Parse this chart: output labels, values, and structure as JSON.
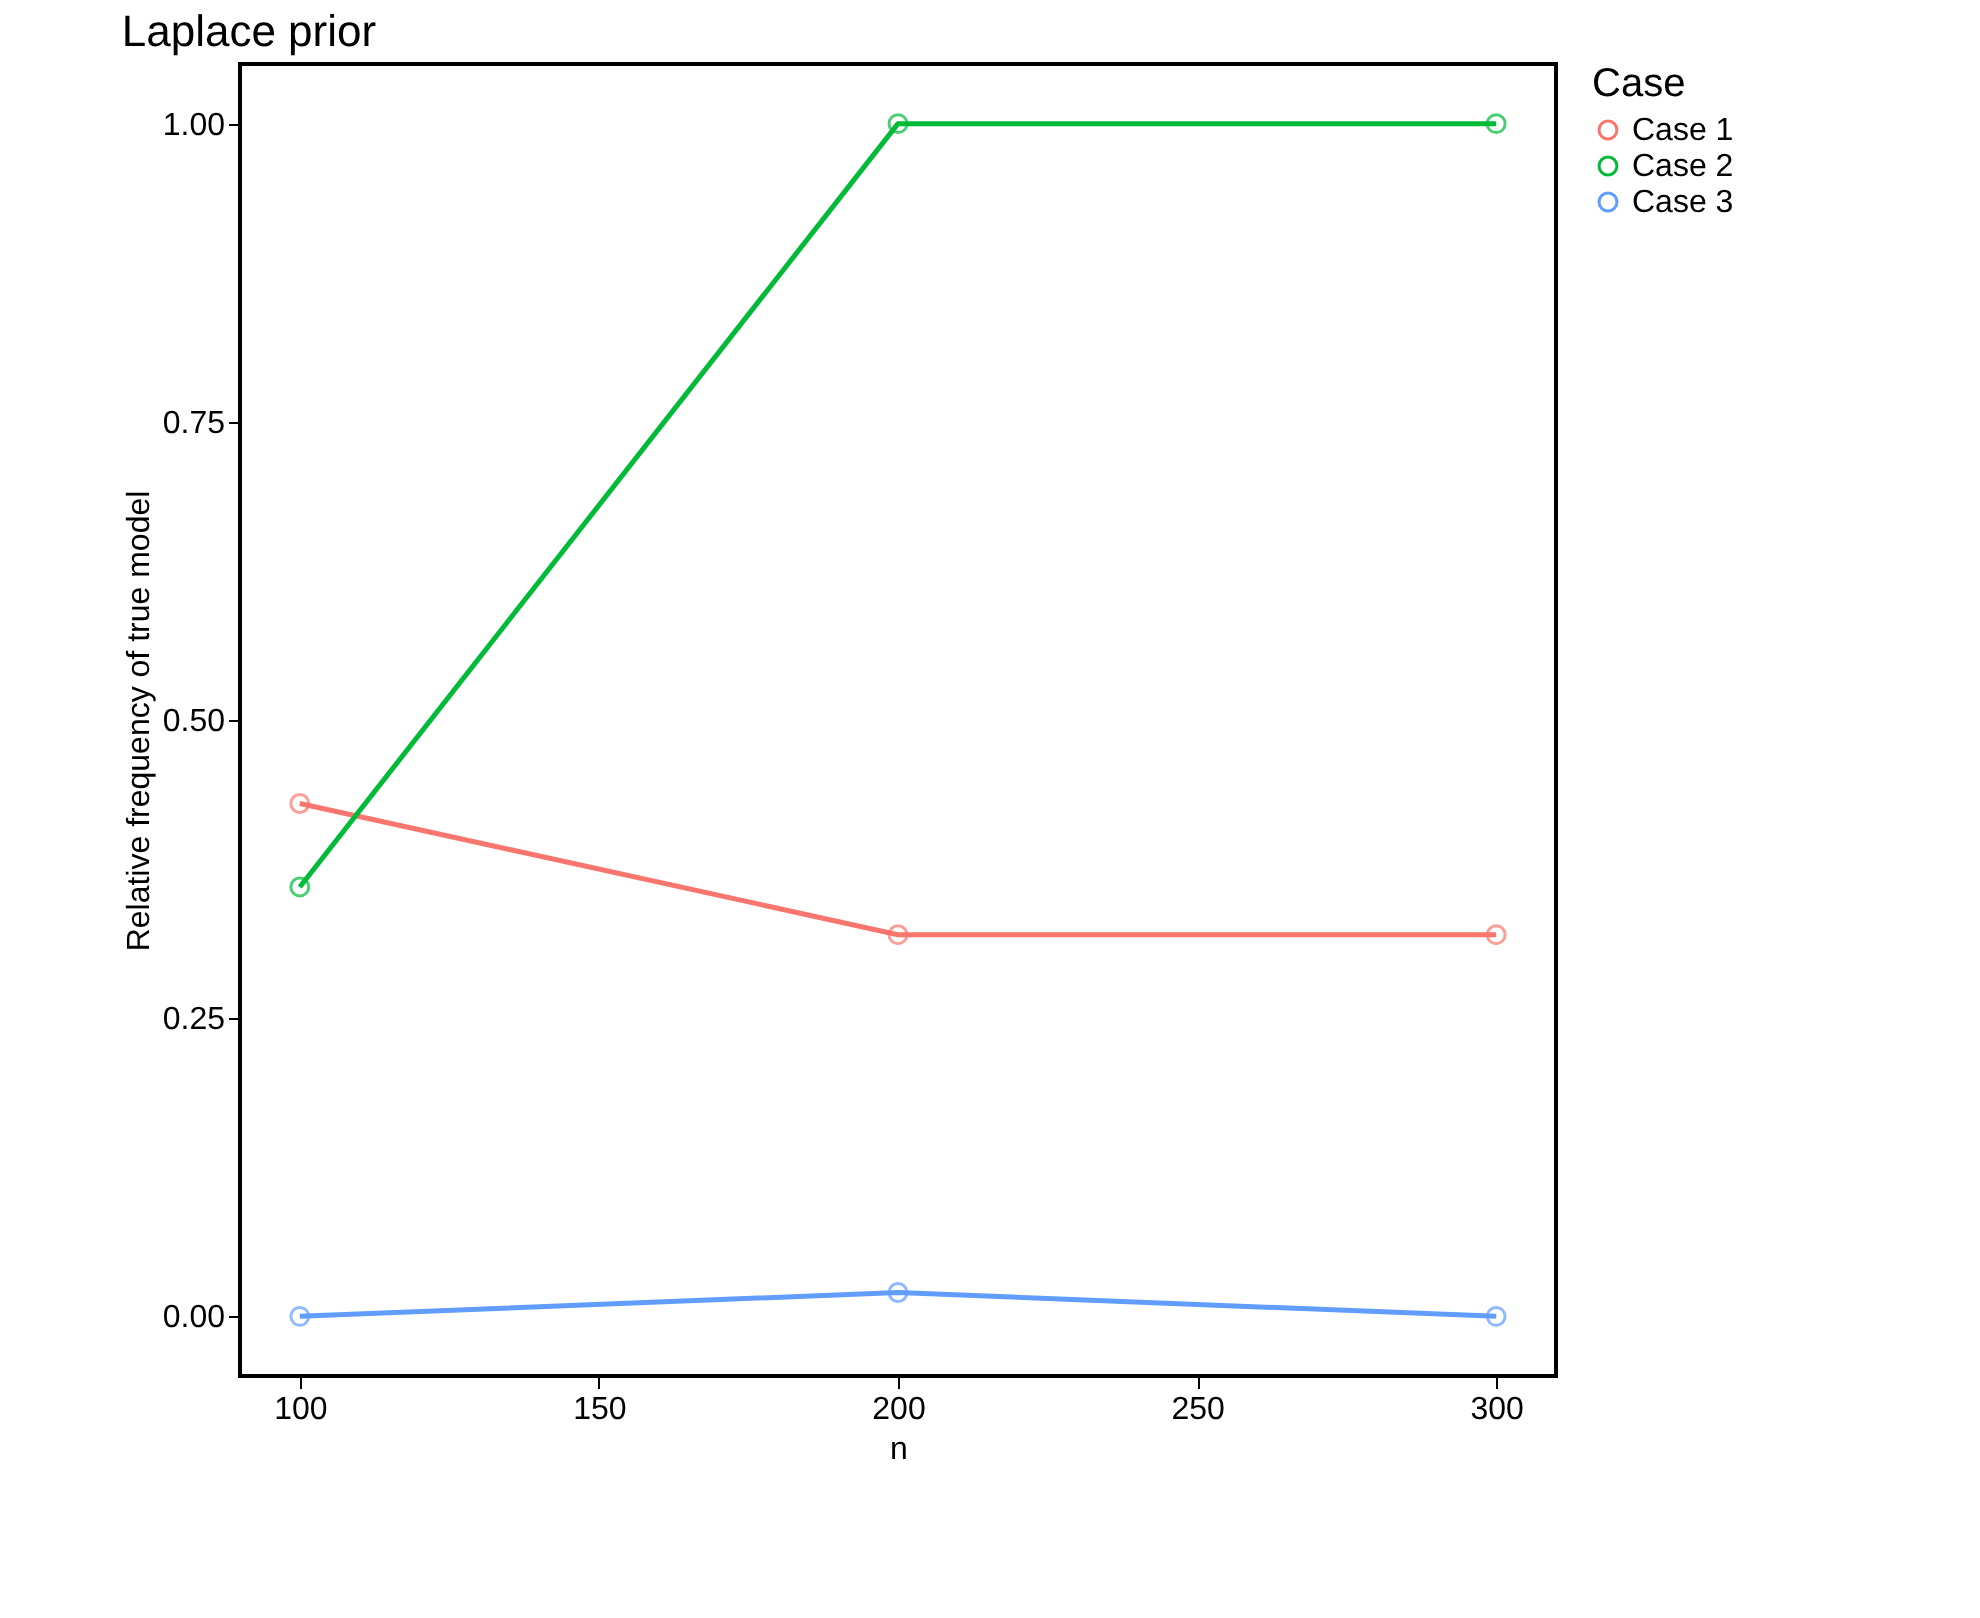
{
  "chart_data": {
    "type": "line",
    "title": "Laplace prior",
    "xlabel": "n",
    "ylabel": "Relative frequency of true model",
    "legend_title": "Case",
    "x": [
      100,
      200,
      300
    ],
    "series": [
      {
        "name": "Case 1",
        "color": "#f8766d",
        "values": [
          0.43,
          0.32,
          0.32
        ]
      },
      {
        "name": "Case 2",
        "color": "#00ba38",
        "values": [
          0.36,
          1.0,
          1.0
        ]
      },
      {
        "name": "Case 3",
        "color": "#619cff",
        "values": [
          0.0,
          0.02,
          0.0
        ]
      }
    ],
    "xlim": [
      90,
      310
    ],
    "ylim": [
      -0.05,
      1.05
    ],
    "xticks": [
      100,
      150,
      200,
      250,
      300
    ],
    "yticks": [
      {
        "value": 0,
        "label": "0.00"
      },
      {
        "value": 0.25,
        "label": "0.25"
      },
      {
        "value": 0.5,
        "label": "0.50"
      },
      {
        "value": 0.75,
        "label": "0.75"
      },
      {
        "value": 1,
        "label": "1.00"
      }
    ],
    "grid": false,
    "legend": "right",
    "marker": "circle",
    "line_style": "solid"
  }
}
